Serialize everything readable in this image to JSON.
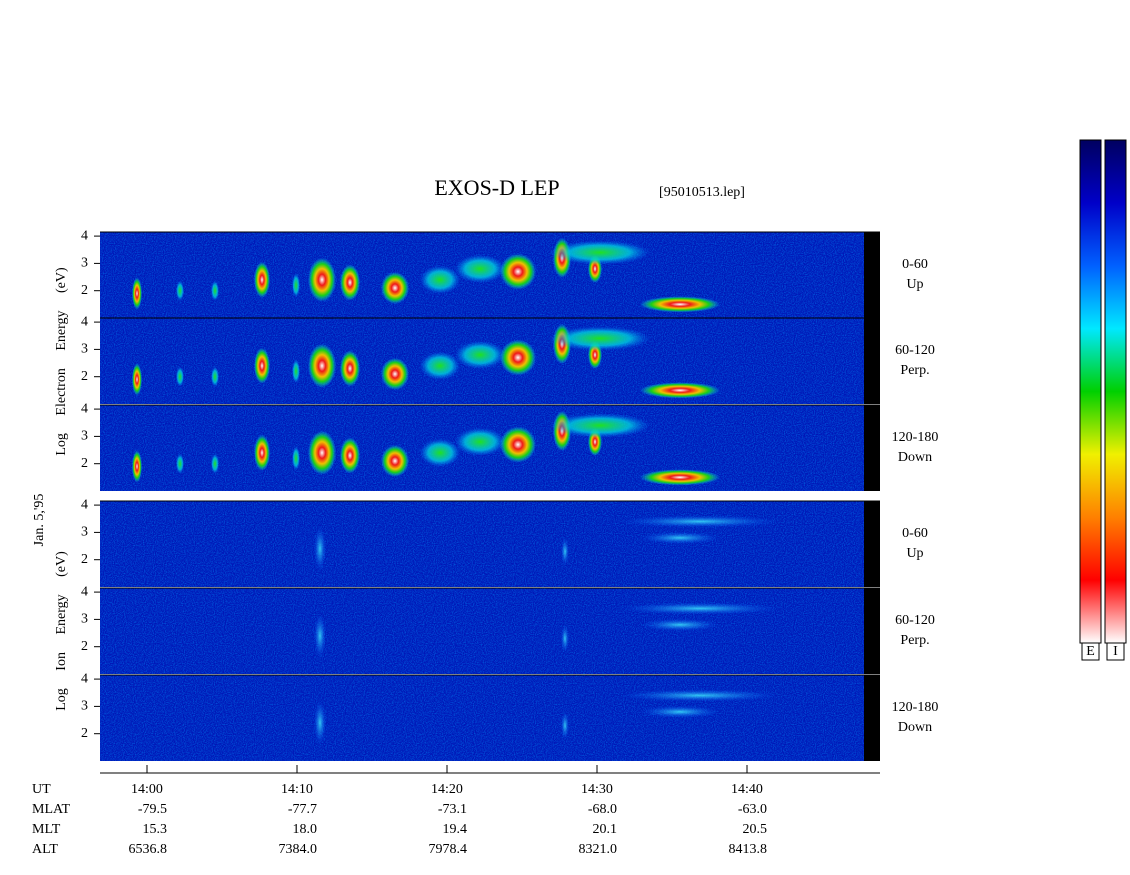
{
  "chart_data": {
    "type": "spectrogram",
    "title": "EXOS-D LEP",
    "subtitle": "[95010513.lep]",
    "date_label": "Jan. 5,'95",
    "groups": [
      {
        "species_label": "Log Electron Energy (eV)",
        "panels": [
          {
            "label": "0-60",
            "direction": "Up"
          },
          {
            "label": "60-120",
            "direction": "Perp."
          },
          {
            "label": "120-180",
            "direction": "Down"
          }
        ]
      },
      {
        "species_label": "Log Ion Energy (eV)",
        "panels": [
          {
            "label": "0-60",
            "direction": "Up"
          },
          {
            "label": "60-120",
            "direction": "Perp."
          },
          {
            "label": "120-180",
            "direction": "Down"
          }
        ]
      }
    ],
    "ylim": [
      1,
      4.15
    ],
    "yticks": [
      2,
      3,
      4
    ],
    "xlim": [
      "13:56:52",
      "14:48:52"
    ],
    "xticks": [
      "14:00",
      "14:10",
      "14:20",
      "14:30",
      "14:40"
    ],
    "ephemeris": {
      "header": "UT",
      "rows": [
        {
          "label": "MLAT",
          "values": [
            "-79.5",
            "-77.7",
            "-73.1",
            "-68.0",
            "-63.0"
          ]
        },
        {
          "label": "MLT",
          "values": [
            "15.3",
            "18.0",
            "19.4",
            "20.1",
            "20.5"
          ]
        },
        {
          "label": "ALT",
          "values": [
            "6536.8",
            "7384.0",
            "7978.4",
            "8321.0",
            "8413.8"
          ]
        }
      ]
    },
    "colorbars": [
      {
        "label": "E"
      },
      {
        "label": "I"
      }
    ],
    "colorscale": [
      "#000060",
      "#0000c8",
      "#0060ff",
      "#00e8ff",
      "#00d000",
      "#f0f000",
      "#ff8000",
      "#ff0000",
      "#ffffff"
    ]
  }
}
